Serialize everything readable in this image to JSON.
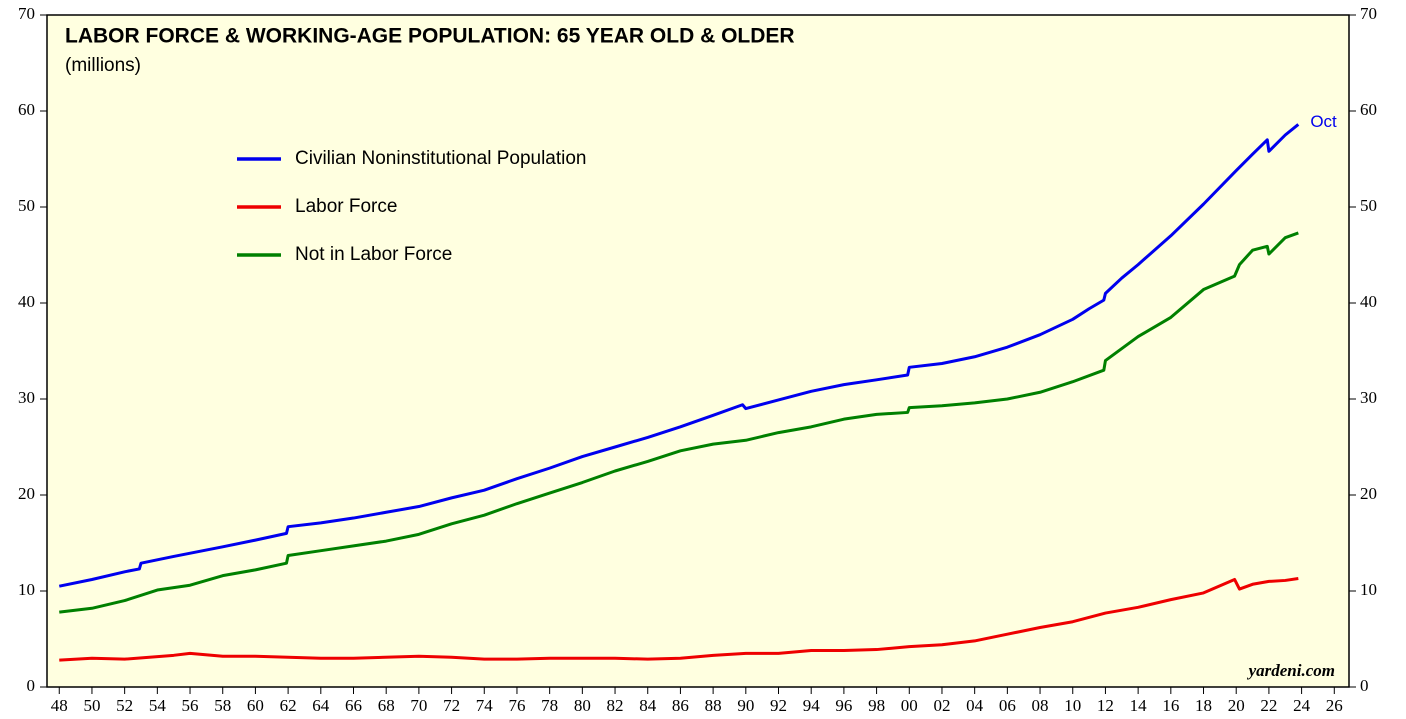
{
  "chart_data": {
    "type": "line",
    "title": "LABOR FORCE & WORKING-AGE POPULATION: 65 YEAR OLD & OLDER",
    "subtitle": "(millions)",
    "annotations": [
      "Oct"
    ],
    "source": "yardeni.com",
    "background": "#ffffe0",
    "series": [
      {
        "name": "Civilian Noninstitutional Population",
        "color": "#0000ee",
        "x": [
          1948,
          1950,
          1952,
          1952.9,
          1953,
          1955,
          1958,
          1960,
          1961.9,
          1962,
          1964,
          1966,
          1968,
          1970,
          1972,
          1974,
          1976,
          1978,
          1980,
          1982,
          1984,
          1986,
          1988,
          1989.8,
          1990,
          1992,
          1994,
          1996,
          1998,
          1999.9,
          2000,
          2002,
          2004,
          2006,
          2008,
          2010,
          2011,
          2011.9,
          2012,
          2013,
          2014,
          2016,
          2018,
          2020,
          2021,
          2021.9,
          2022,
          2023,
          2023.8
        ],
        "values": [
          10.5,
          11.2,
          12.0,
          12.3,
          12.9,
          13.6,
          14.6,
          15.3,
          16.0,
          16.7,
          17.1,
          17.6,
          18.2,
          18.8,
          19.7,
          20.5,
          21.7,
          22.8,
          24.0,
          25.0,
          26.0,
          27.1,
          28.3,
          29.4,
          29.0,
          29.9,
          30.8,
          31.5,
          32.0,
          32.5,
          33.3,
          33.7,
          34.4,
          35.4,
          36.7,
          38.3,
          39.4,
          40.3,
          41.0,
          42.6,
          44.0,
          47.0,
          50.3,
          53.8,
          55.5,
          57.0,
          55.8,
          57.5,
          58.6
        ]
      },
      {
        "name": "Labor Force",
        "color": "#ee0000",
        "x": [
          1948,
          1950,
          1952,
          1955,
          1956,
          1958,
          1960,
          1962,
          1964,
          1966,
          1970,
          1972,
          1974,
          1976,
          1978,
          1980,
          1982,
          1984,
          1986,
          1988,
          1990,
          1992,
          1994,
          1996,
          1998,
          2000,
          2002,
          2004,
          2006,
          2008,
          2010,
          2012,
          2014,
          2016,
          2018,
          2019.9,
          2020.2,
          2021,
          2022,
          2023,
          2023.8
        ],
        "values": [
          2.8,
          3.0,
          2.9,
          3.3,
          3.5,
          3.2,
          3.2,
          3.1,
          3.0,
          3.0,
          3.2,
          3.1,
          2.9,
          2.9,
          3.0,
          3.0,
          3.0,
          2.9,
          3.0,
          3.3,
          3.5,
          3.5,
          3.8,
          3.8,
          3.9,
          4.2,
          4.4,
          4.8,
          5.5,
          6.2,
          6.8,
          7.7,
          8.3,
          9.1,
          9.8,
          11.2,
          10.2,
          10.7,
          11.0,
          11.1,
          11.3
        ]
      },
      {
        "name": "Not in Labor Force",
        "color": "#008000",
        "x": [
          1948,
          1950,
          1952,
          1954,
          1956,
          1958,
          1960,
          1961.9,
          1962,
          1964,
          1966,
          1968,
          1970,
          1972,
          1974,
          1976,
          1978,
          1980,
          1982,
          1984,
          1986,
          1988,
          1990,
          1992,
          1994,
          1996,
          1998,
          1999.9,
          2000,
          2002,
          2004,
          2006,
          2008,
          2010,
          2011.9,
          2012,
          2014,
          2016,
          2018,
          2019.9,
          2020.2,
          2021,
          2021.9,
          2022,
          2023,
          2023.8
        ],
        "values": [
          7.8,
          8.2,
          9.0,
          10.1,
          10.6,
          11.6,
          12.2,
          12.9,
          13.7,
          14.2,
          14.7,
          15.2,
          15.9,
          17.0,
          17.9,
          19.1,
          20.2,
          21.3,
          22.5,
          23.5,
          24.6,
          25.3,
          25.7,
          26.5,
          27.1,
          27.9,
          28.4,
          28.6,
          29.1,
          29.3,
          29.6,
          30.0,
          30.7,
          31.8,
          33.0,
          34.0,
          36.5,
          38.5,
          41.4,
          42.8,
          44.0,
          45.5,
          45.9,
          45.1,
          46.8,
          47.3
        ]
      }
    ],
    "xlim": [
      1947.25,
      2026.9
    ],
    "xticks": [
      {
        "value": 1948,
        "label": "48"
      },
      {
        "value": 1950,
        "label": "50"
      },
      {
        "value": 1952,
        "label": "52"
      },
      {
        "value": 1954,
        "label": "54"
      },
      {
        "value": 1956,
        "label": "56"
      },
      {
        "value": 1958,
        "label": "58"
      },
      {
        "value": 1960,
        "label": "60"
      },
      {
        "value": 1962,
        "label": "62"
      },
      {
        "value": 1964,
        "label": "64"
      },
      {
        "value": 1966,
        "label": "66"
      },
      {
        "value": 1968,
        "label": "68"
      },
      {
        "value": 1970,
        "label": "70"
      },
      {
        "value": 1972,
        "label": "72"
      },
      {
        "value": 1974,
        "label": "74"
      },
      {
        "value": 1976,
        "label": "76"
      },
      {
        "value": 1978,
        "label": "78"
      },
      {
        "value": 1980,
        "label": "80"
      },
      {
        "value": 1982,
        "label": "82"
      },
      {
        "value": 1984,
        "label": "84"
      },
      {
        "value": 1986,
        "label": "86"
      },
      {
        "value": 1988,
        "label": "88"
      },
      {
        "value": 1990,
        "label": "90"
      },
      {
        "value": 1992,
        "label": "92"
      },
      {
        "value": 1994,
        "label": "94"
      },
      {
        "value": 1996,
        "label": "96"
      },
      {
        "value": 1998,
        "label": "98"
      },
      {
        "value": 2000,
        "label": "00"
      },
      {
        "value": 2002,
        "label": "02"
      },
      {
        "value": 2004,
        "label": "04"
      },
      {
        "value": 2006,
        "label": "06"
      },
      {
        "value": 2008,
        "label": "08"
      },
      {
        "value": 2010,
        "label": "10"
      },
      {
        "value": 2012,
        "label": "12"
      },
      {
        "value": 2014,
        "label": "14"
      },
      {
        "value": 2016,
        "label": "16"
      },
      {
        "value": 2018,
        "label": "18"
      },
      {
        "value": 2020,
        "label": "20"
      },
      {
        "value": 2022,
        "label": "22"
      },
      {
        "value": 2024,
        "label": "24"
      },
      {
        "value": 2026,
        "label": "26"
      }
    ],
    "ylim": [
      0,
      70
    ],
    "yticks": [
      0,
      10,
      20,
      30,
      40,
      50,
      60,
      70
    ],
    "y2lim": [
      0,
      70
    ],
    "y2ticks": [
      0,
      10,
      20,
      30,
      40,
      50,
      60,
      70
    ]
  }
}
